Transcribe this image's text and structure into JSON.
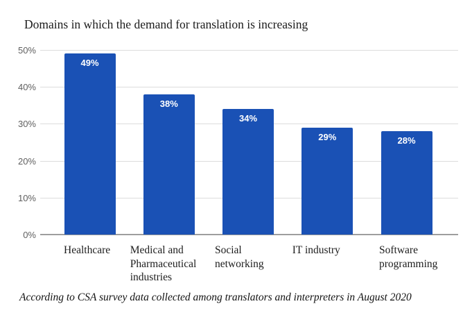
{
  "title": "Domains in which the demand for translation is increasing",
  "footnote": "According to CSA survey data collected among translators and interpreters in August 2020",
  "colors": {
    "bar": "#1a51b5",
    "gridline": "#dcdcdc",
    "axis_line": "#9e9e9e",
    "tick_label": "#5f5f5f",
    "bar_value_label": "#ffffff",
    "title_text": "#1b1b1b",
    "category_label": "#1c1c1c",
    "footnote_text": "#111111",
    "background": "#ffffff"
  },
  "chart_data": {
    "type": "bar",
    "title": "Domains in which the demand for translation is increasing",
    "categories": [
      "Healthcare",
      "Medical and Pharmaceutical industries",
      "Social networking",
      "IT industry",
      "Software programming"
    ],
    "category_lines": [
      [
        "Healthcare"
      ],
      [
        "Medical and",
        "Pharmaceutical",
        "industries"
      ],
      [
        "Social",
        "networking"
      ],
      [
        "IT industry"
      ],
      [
        "Software",
        "programming"
      ]
    ],
    "values": [
      49,
      38,
      34,
      29,
      28
    ],
    "value_labels": [
      "49%",
      "38%",
      "34%",
      "29%",
      "28%"
    ],
    "xlabel": "",
    "ylabel": "",
    "ylim": [
      0,
      50
    ],
    "ytick_step": 10,
    "ytick_labels": [
      "0%",
      "10%",
      "20%",
      "30%",
      "40%",
      "50%"
    ],
    "grid": true,
    "legend": false,
    "annotation": "According to CSA survey data collected among translators and interpreters in August 2020"
  }
}
